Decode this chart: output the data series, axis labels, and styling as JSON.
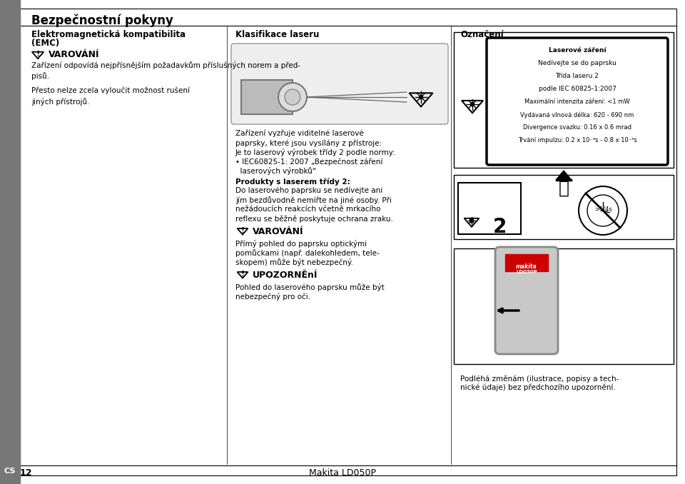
{
  "bg_color": "#ffffff",
  "sidebar_color": "#808080",
  "sidebar_label": "CS",
  "page_title": "Bezpečnostní pokyny",
  "col1_heading1": "Elektromagnetická kompatibilita",
  "col1_heading2": "(EMC)",
  "col2_heading": "Klasifikace laseru",
  "col3_heading": "Označení",
  "varování_title": "VAROVÁNÍ",
  "varování_text1": "Zařízení odpovídá nejpřísnějším požadavkům příslušných norem a před-\npisů.",
  "varování_text2": "Přesto nelze zcela vyloučit možnost rušení\njiných přístrojů.",
  "laser_text1": "Zařízení vyzřuje viditelné laserové",
  "laser_text2": "paprsky, které jsou vysílány z přístroje:",
  "laser_text3": "Je to laserový výrobek třídy 2 podle normy:",
  "laser_text4": "• IEC60825-1: 2007 „Bezpečnost záření",
  "laser_text5": "  laserových výrobků“",
  "produkty_bold": "Produkty s laserem třídy 2:",
  "produkty_text1": "Do laserového paprsku se nedívejte ani",
  "produkty_text2": "jím bezdůvodně nemířte na jiné osoby. Při",
  "produkty_text3": "nežádoucích reakcích včetně mrkacího",
  "produkty_text4": "reflexu se běžně poskytuje ochrana zraku.",
  "varování2_title": "VAROVÁNÍ",
  "varování2_text1": "Přímý pohled do paprsku optickými",
  "varování2_text2": "pomůckami (např. dalekohledem, tele-",
  "varování2_text3": "skopem) může být nebezpečný.",
  "upozorneni_title": "UPOZORNĚnÍ",
  "upozorneni_text1": "Pohled do laserového paprsku může být",
  "upozorneni_text2": "nebezpečný pro oči.",
  "label_line1": "Laserové záření",
  "label_line2": "Nedívejte se do paprsku",
  "label_line3": "Třída laseru 2",
  "label_line4": "podle IEC 60825-1:2007",
  "label_line5": "Maximální intenzita záření: <1 mW",
  "label_line6": "Vydávaná vlnová délka: 620 - 690 nm",
  "label_line7": "Divergence svazku: 0.16 x 0.6 mrad",
  "label_line8": "Trvání impulzu: 0.2 x 10⁻⁹s - 0.8 x 10⁻⁹s",
  "footer_text": "Makita LD050P",
  "footer_note1": "Podléhá změnám (ilustrace, popisy a tech-",
  "footer_note2": "nické údaje) bez předchozího upozornění.",
  "page_num": "12",
  "border_color": "#000000",
  "gray_sidebar": "#777777"
}
